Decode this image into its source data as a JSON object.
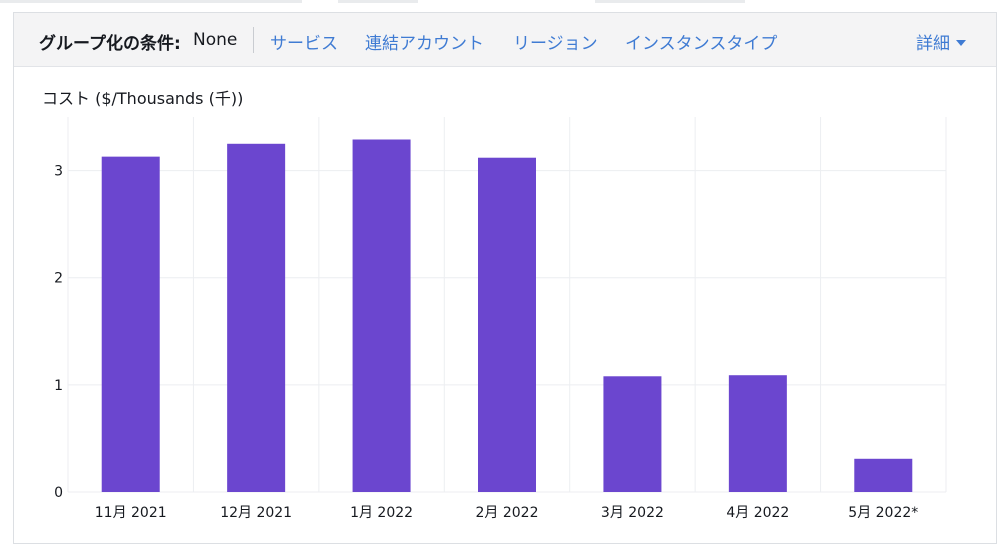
{
  "toolbar": {
    "group_by_label": "グループ化の条件:",
    "group_by_value": "None",
    "tabs": [
      {
        "label": "サービス"
      },
      {
        "label": "連結アカウント"
      },
      {
        "label": "リージョン"
      },
      {
        "label": "インスタンスタイプ"
      }
    ],
    "more_label": "詳細",
    "more_icon": "caret-down-icon",
    "link_color": "#3f7bd3"
  },
  "chart_data": {
    "type": "bar",
    "title": "コスト ($/Thousands (千))",
    "categories": [
      "11月 2021",
      "12月 2021",
      "1月 2022",
      "2月 2022",
      "3月 2022",
      "4月 2022",
      "5月 2022*"
    ],
    "values": [
      3.13,
      3.25,
      3.29,
      3.12,
      1.08,
      1.09,
      0.31
    ],
    "ylim": [
      0,
      3.5
    ],
    "yticks": [
      0,
      1,
      2,
      3
    ],
    "grid": true,
    "bar_color": "#6b46cf",
    "grid_color": "#eceef1"
  }
}
